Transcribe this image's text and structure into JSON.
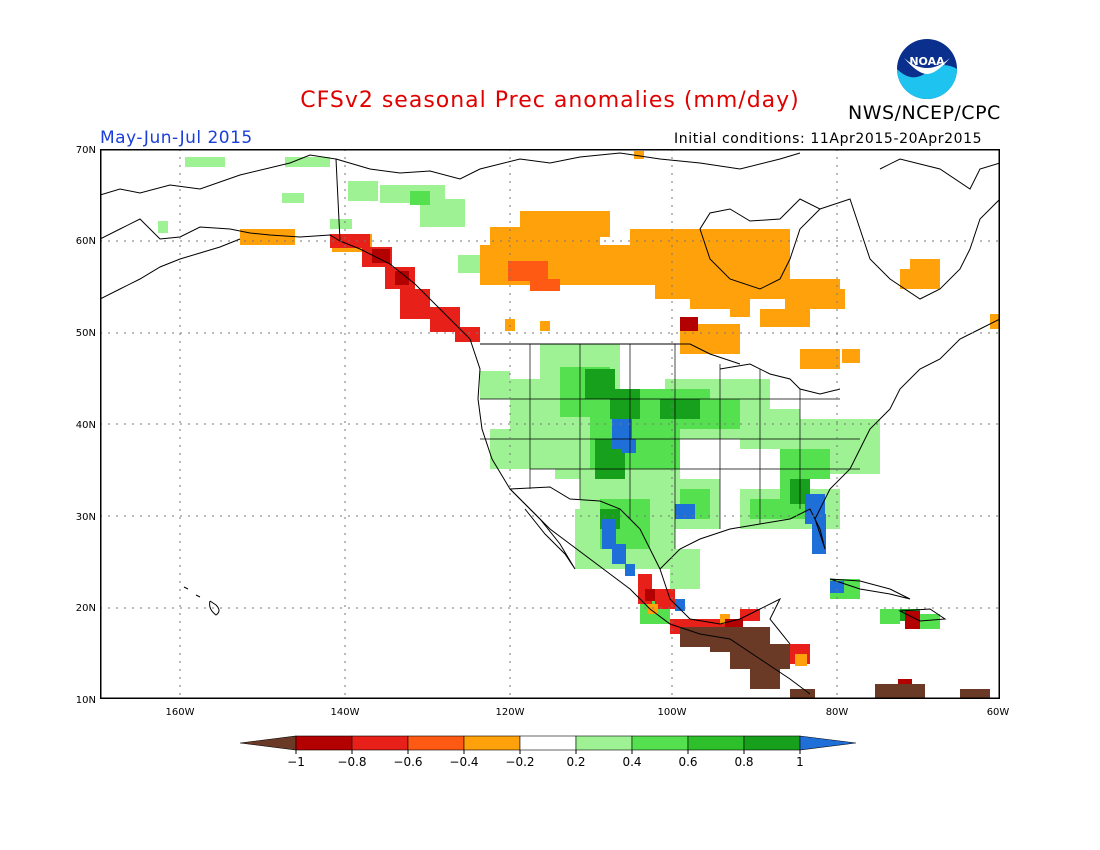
{
  "header": {
    "title": "CFSv2 seasonal Prec anomalies (mm/day)",
    "agency": "NWS/NCEP/CPC",
    "season": "May-Jun-Jul 2015",
    "initial_conditions": "Initial conditions: 11Apr2015-20Apr2015",
    "logo_text": "NOAA"
  },
  "map": {
    "lat_labels": [
      "70N",
      "60N",
      "50N",
      "40N",
      "30N",
      "20N",
      "10N"
    ],
    "lon_labels": [
      "160W",
      "140W",
      "120W",
      "100W",
      "80W",
      "60W"
    ],
    "region": "North America",
    "colors": {
      "coast": "#000000",
      "grid": "#666666"
    }
  },
  "colorbar": {
    "labels": [
      "-1",
      "-0.8",
      "-0.6",
      "-0.4",
      "-0.2",
      "0.2",
      "0.4",
      "0.6",
      "0.8",
      "1"
    ],
    "colors": [
      "#6b3a26",
      "#b30000",
      "#e8201a",
      "#ff5a14",
      "#ffa10a",
      "#ffffff",
      "#9ef294",
      "#55e050",
      "#2ec02b",
      "#17a01b",
      "#1f6fd8"
    ]
  }
}
